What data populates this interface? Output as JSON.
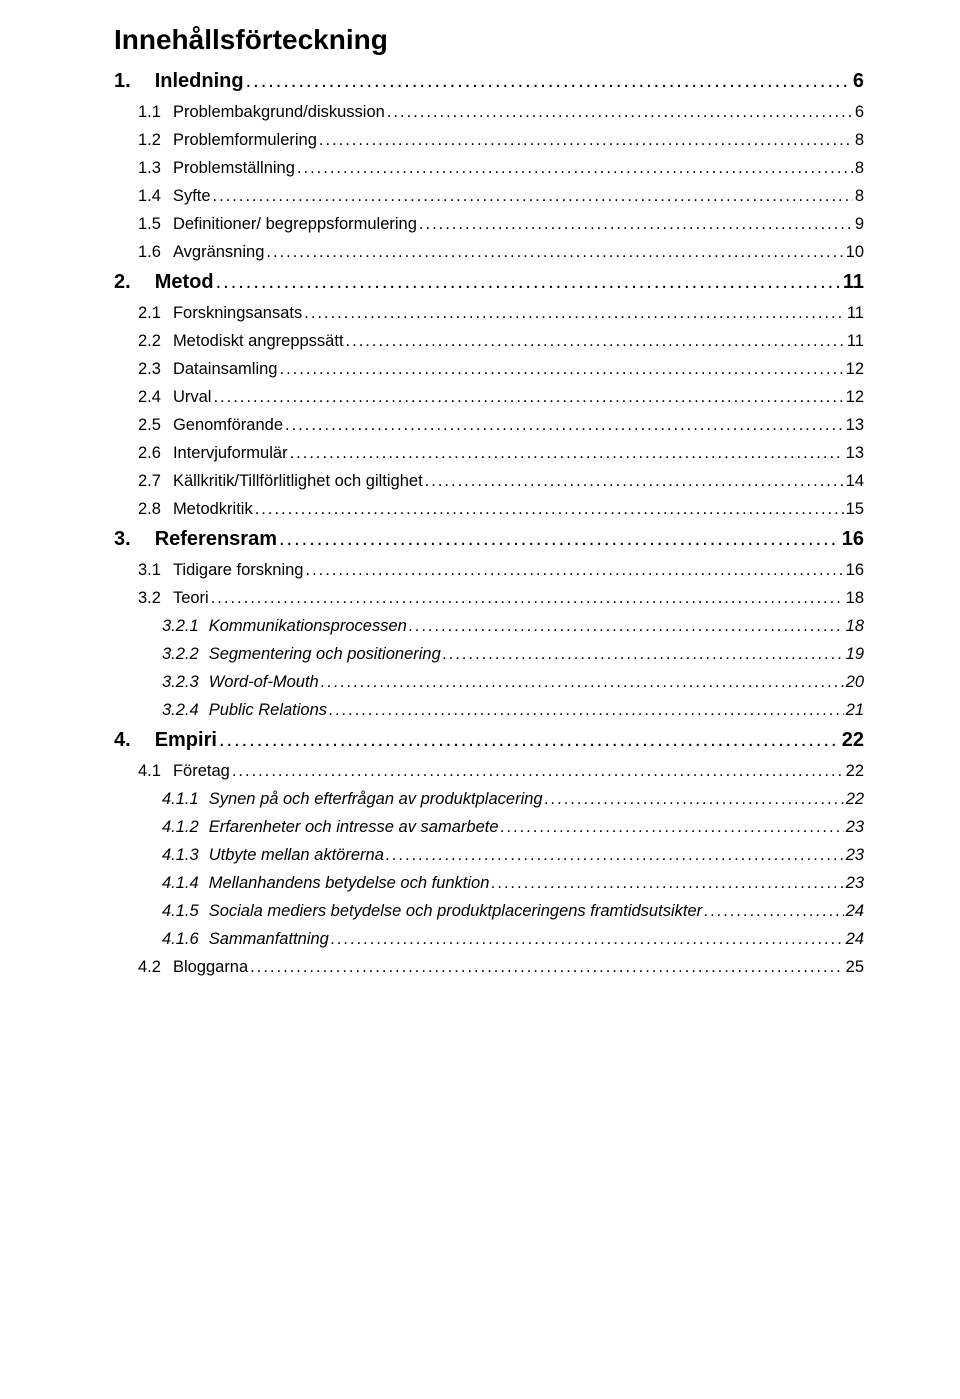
{
  "title": "Innehållsförteckning",
  "entries": [
    {
      "level": 1,
      "num": "1.",
      "text": "Inledning",
      "page": "6"
    },
    {
      "level": 2,
      "num": "1.1",
      "text": "Problembakgrund/diskussion",
      "page": "6"
    },
    {
      "level": 2,
      "num": "1.2",
      "text": "Problemformulering",
      "page": "8"
    },
    {
      "level": 2,
      "num": "1.3",
      "text": "Problemställning",
      "page": "8"
    },
    {
      "level": 2,
      "num": "1.4",
      "text": "Syfte",
      "page": "8"
    },
    {
      "level": 2,
      "num": "1.5",
      "text": "Definitioner/ begreppsformulering",
      "page": "9"
    },
    {
      "level": 2,
      "num": "1.6",
      "text": "Avgränsning",
      "page": "10"
    },
    {
      "level": 1,
      "num": "2.",
      "text": "Metod",
      "page": "11"
    },
    {
      "level": 2,
      "num": "2.1",
      "text": "Forskningsansats",
      "page": "11"
    },
    {
      "level": 2,
      "num": "2.2",
      "text": "Metodiskt angreppssätt",
      "page": "11"
    },
    {
      "level": 2,
      "num": "2.3",
      "text": "Datainsamling",
      "page": "12"
    },
    {
      "level": 2,
      "num": "2.4",
      "text": "Urval",
      "page": "12"
    },
    {
      "level": 2,
      "num": "2.5",
      "text": "Genomförande",
      "page": "13"
    },
    {
      "level": 2,
      "num": "2.6",
      "text": "Intervjuformulär",
      "page": "13"
    },
    {
      "level": 2,
      "num": "2.7",
      "text": "Källkritik/Tillförlitlighet och giltighet",
      "page": "14"
    },
    {
      "level": 2,
      "num": "2.8",
      "text": "Metodkritik",
      "page": "15"
    },
    {
      "level": 1,
      "num": "3.",
      "text": "Referensram",
      "page": "16"
    },
    {
      "level": 2,
      "num": "3.1",
      "text": "Tidigare forskning",
      "page": "16"
    },
    {
      "level": 2,
      "num": "3.2",
      "text": "Teori",
      "page": "18"
    },
    {
      "level": 3,
      "num": "3.2.1",
      "text": "Kommunikationsprocessen",
      "page": "18"
    },
    {
      "level": 3,
      "num": "3.2.2",
      "text": "Segmentering och positionering",
      "page": "19"
    },
    {
      "level": 3,
      "num": "3.2.3",
      "text": "Word-of-Mouth",
      "page": "20"
    },
    {
      "level": 3,
      "num": "3.2.4",
      "text": "Public Relations",
      "page": "21"
    },
    {
      "level": 1,
      "num": "4.",
      "text": "Empiri",
      "page": "22"
    },
    {
      "level": 2,
      "num": "4.1",
      "text": "Företag",
      "page": "22"
    },
    {
      "level": 3,
      "num": "4.1.1",
      "text": "Synen på och efterfrågan av produktplacering",
      "page": "22"
    },
    {
      "level": 3,
      "num": "4.1.2",
      "text": "Erfarenheter och intresse av samarbete",
      "page": "23"
    },
    {
      "level": 3,
      "num": "4.1.3",
      "text": "Utbyte mellan aktörerna",
      "page": "23"
    },
    {
      "level": 3,
      "num": "4.1.4",
      "text": "Mellanhandens betydelse och funktion",
      "page": "23"
    },
    {
      "level": 3,
      "num": "4.1.5",
      "text": "Sociala mediers betydelse och produktplaceringens framtidsutsikter",
      "page": "24"
    },
    {
      "level": 3,
      "num": "4.1.6",
      "text": "Sammanfattning",
      "page": "24"
    },
    {
      "level": 2,
      "num": "4.2",
      "text": "Bloggarna",
      "page": "25"
    }
  ]
}
